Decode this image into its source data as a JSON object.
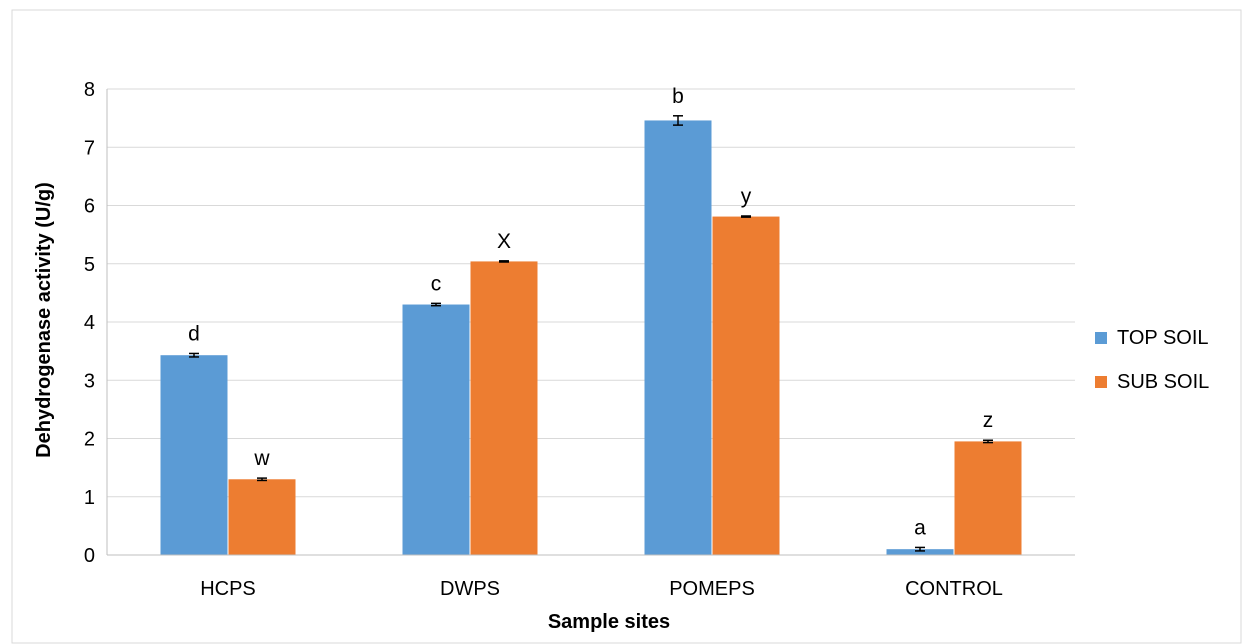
{
  "chart_data": {
    "type": "bar",
    "xlabel": "Sample sites",
    "ylabel": "Dehydrogenase activity (U/g)",
    "categories": [
      "HCPS",
      "DWPS",
      "POMEPS",
      "CONTROL"
    ],
    "ylim": [
      0,
      8
    ],
    "yticks": [
      "0",
      "1",
      "2",
      "3",
      "4",
      "5",
      "6",
      "7",
      "8"
    ],
    "grid": true,
    "legend_position": "right",
    "series": [
      {
        "name": "TOP SOIL",
        "color": "#5B9BD5",
        "values": [
          3.43,
          4.3,
          7.46,
          0.1
        ],
        "errors": [
          0.03,
          0.02,
          0.08,
          0.03
        ],
        "labels": [
          "d",
          "c",
          "b",
          "a"
        ]
      },
      {
        "name": "SUB SOIL",
        "color": "#ED7D31",
        "values": [
          1.3,
          5.04,
          5.81,
          1.95
        ],
        "errors": [
          0.02,
          0.01,
          0.01,
          0.02
        ],
        "labels": [
          "w",
          "X",
          "y",
          "z"
        ]
      }
    ]
  }
}
